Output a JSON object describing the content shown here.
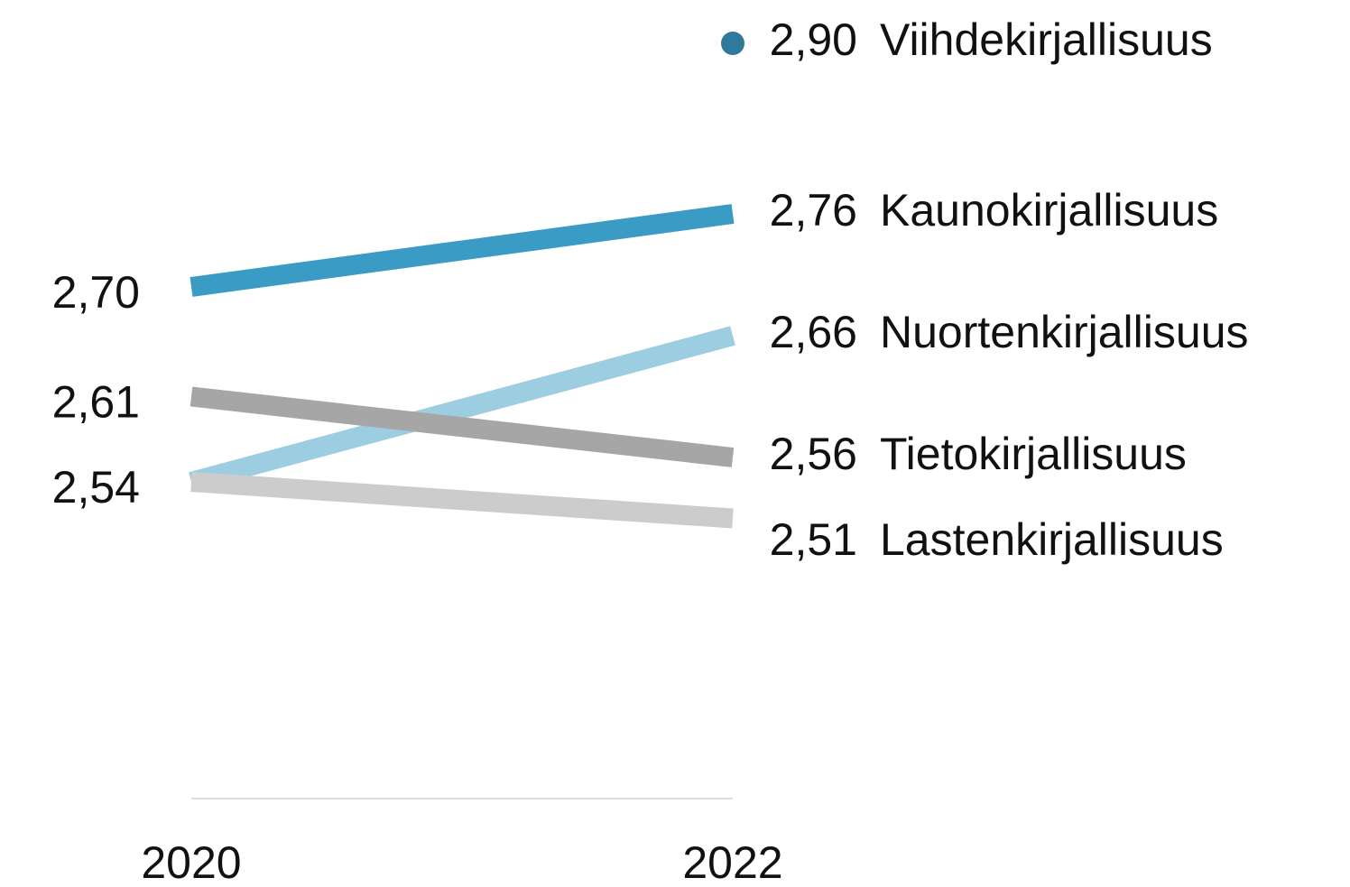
{
  "chart_data": {
    "type": "line",
    "categories": [
      "2020",
      "2022"
    ],
    "series": [
      {
        "name": "Viihdekirjallisuus",
        "color": "#2e7a9c",
        "values": [
          null,
          2.9
        ],
        "value_labels": [
          null,
          "2,90"
        ]
      },
      {
        "name": "Kaunokirjallisuus",
        "color": "#3a9cc4",
        "values": [
          2.7,
          2.76
        ],
        "value_labels": [
          "2,70",
          "2,76"
        ]
      },
      {
        "name": "Nuortenkirjallisuus",
        "color": "#9ccde0",
        "values": [
          2.54,
          2.66
        ],
        "value_labels": [
          null,
          "2,66"
        ]
      },
      {
        "name": "Tietokirjallisuus",
        "color": "#a6a6a6",
        "values": [
          2.61,
          2.56
        ],
        "value_labels": [
          "2,61",
          "2,56"
        ]
      },
      {
        "name": "Lastenkirjallisuus",
        "color": "#cccccc",
        "values": [
          2.54,
          2.51
        ],
        "value_labels": [
          "2,54",
          "2,51"
        ]
      }
    ],
    "ylim": [
      2.28,
      2.9
    ]
  }
}
